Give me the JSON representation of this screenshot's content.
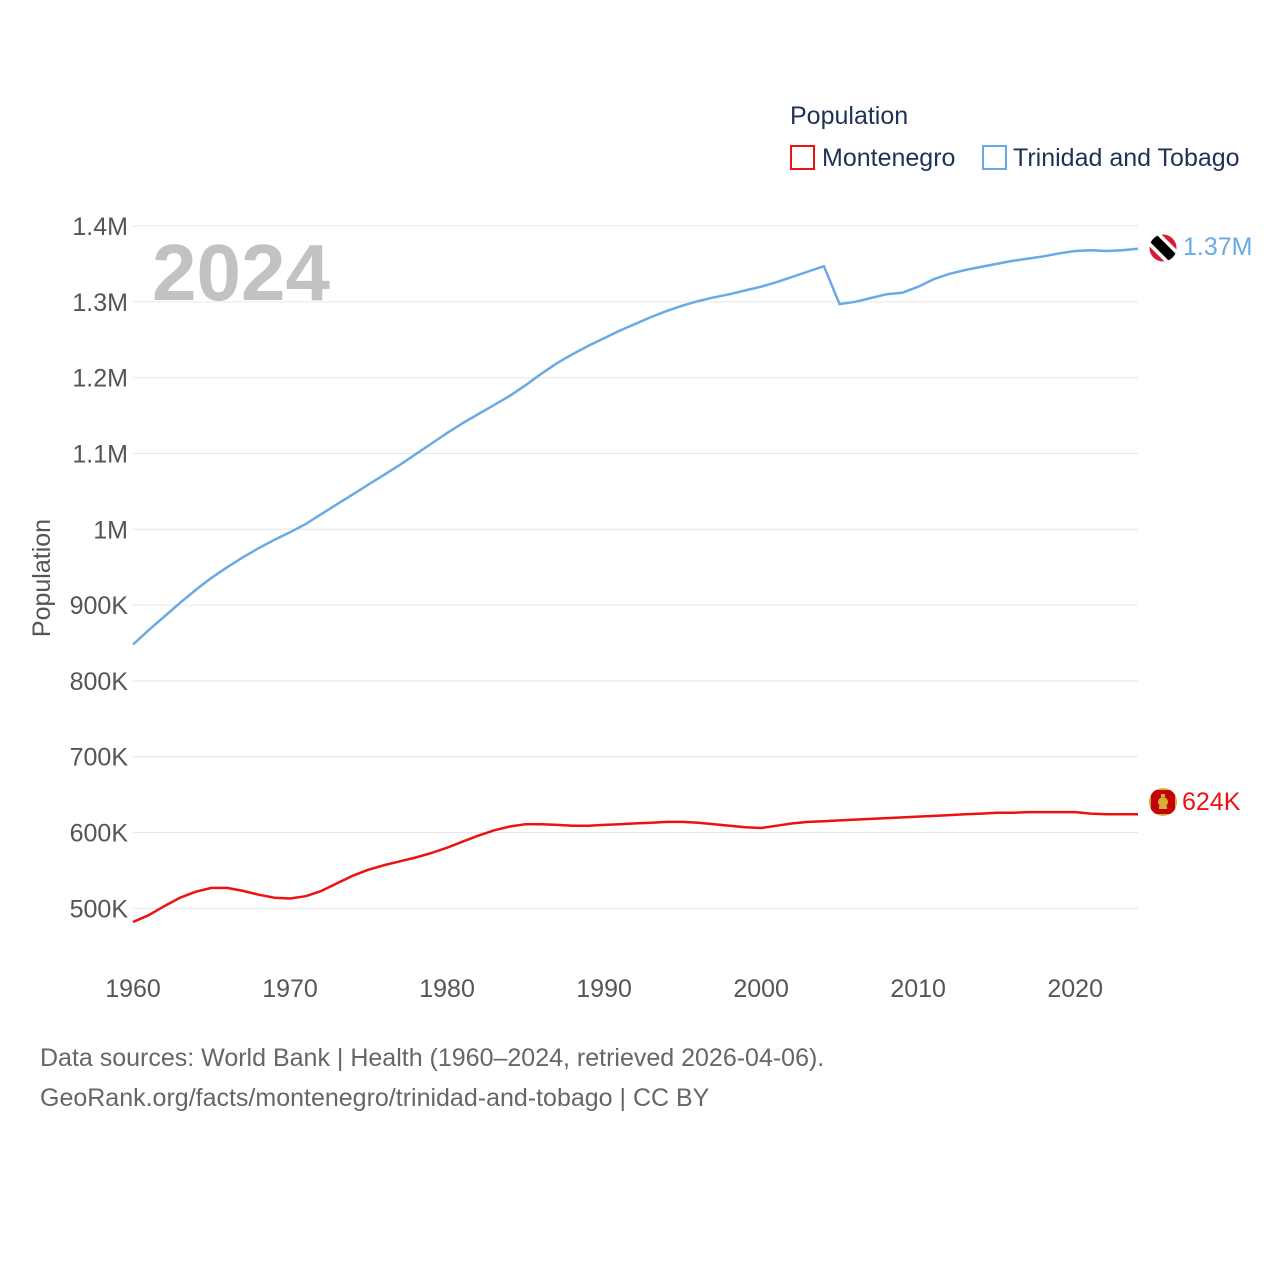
{
  "chart_data": {
    "type": "line",
    "year_label": "2024",
    "ylabel": "Population",
    "xlim": [
      1960,
      2024
    ],
    "ylim": [
      420000,
      1400000
    ],
    "x_ticks": [
      1960,
      1970,
      1980,
      1990,
      2000,
      2010,
      2020
    ],
    "y_ticks": [
      {
        "value": 500000,
        "label": "500K"
      },
      {
        "value": 600000,
        "label": "600K"
      },
      {
        "value": 700000,
        "label": "700K"
      },
      {
        "value": 800000,
        "label": "800K"
      },
      {
        "value": 900000,
        "label": "900K"
      },
      {
        "value": 1000000,
        "label": "1M"
      },
      {
        "value": 1100000,
        "label": "1.1M"
      },
      {
        "value": 1200000,
        "label": "1.2M"
      },
      {
        "value": 1300000,
        "label": "1.3M"
      },
      {
        "value": 1400000,
        "label": "1.4M"
      }
    ],
    "legend": {
      "title": "Population",
      "position": "top-right"
    },
    "series": [
      {
        "name": "Montenegro",
        "color": "#ee1111",
        "end_label": "624K",
        "flag": "montenegro-flag",
        "x": [
          1960,
          1961,
          1962,
          1963,
          1964,
          1965,
          1966,
          1967,
          1968,
          1969,
          1970,
          1971,
          1972,
          1973,
          1974,
          1975,
          1976,
          1977,
          1978,
          1979,
          1980,
          1981,
          1982,
          1983,
          1984,
          1985,
          1986,
          1987,
          1988,
          1989,
          1990,
          1991,
          1992,
          1993,
          1994,
          1995,
          1996,
          1997,
          1998,
          1999,
          2000,
          2001,
          2002,
          2003,
          2004,
          2005,
          2006,
          2007,
          2008,
          2009,
          2010,
          2011,
          2012,
          2013,
          2014,
          2015,
          2016,
          2017,
          2018,
          2019,
          2020,
          2021,
          2022,
          2023,
          2024
        ],
        "values": [
          482000,
          491000,
          503000,
          514000,
          522000,
          527000,
          527000,
          523000,
          518000,
          514000,
          513000,
          516000,
          523000,
          533000,
          543000,
          551000,
          557000,
          562000,
          567000,
          573000,
          580000,
          588000,
          596000,
          603000,
          608000,
          611000,
          611000,
          610000,
          609000,
          609000,
          610000,
          611000,
          612000,
          613000,
          614000,
          614000,
          613000,
          611000,
          609000,
          607000,
          606000,
          609000,
          612000,
          614000,
          615000,
          616000,
          617000,
          618000,
          619000,
          620000,
          621000,
          622000,
          623000,
          624000,
          625000,
          626000,
          626000,
          627000,
          627000,
          627000,
          627000,
          625000,
          624000,
          624000,
          624000
        ]
      },
      {
        "name": "Trinidad and Tobago",
        "color": "#6aaae4",
        "end_label": "1.37M",
        "flag": "trinidad-and-tobago-flag",
        "x": [
          1960,
          1961,
          1962,
          1963,
          1964,
          1965,
          1966,
          1967,
          1968,
          1969,
          1970,
          1971,
          1972,
          1973,
          1974,
          1975,
          1976,
          1977,
          1978,
          1979,
          1980,
          1981,
          1982,
          1983,
          1984,
          1985,
          1986,
          1987,
          1988,
          1989,
          1990,
          1991,
          1992,
          1993,
          1994,
          1995,
          1996,
          1997,
          1998,
          1999,
          2000,
          2001,
          2002,
          2003,
          2004,
          2005,
          2006,
          2007,
          2008,
          2009,
          2010,
          2011,
          2012,
          2013,
          2014,
          2015,
          2016,
          2017,
          2018,
          2019,
          2020,
          2021,
          2022,
          2023,
          2024
        ],
        "values": [
          848000,
          867000,
          885000,
          903000,
          920000,
          936000,
          950000,
          963000,
          975000,
          986000,
          996000,
          1007000,
          1020000,
          1033000,
          1046000,
          1059000,
          1072000,
          1085000,
          1099000,
          1113000,
          1127000,
          1140000,
          1152000,
          1164000,
          1176000,
          1190000,
          1205000,
          1219000,
          1231000,
          1242000,
          1252000,
          1262000,
          1271000,
          1280000,
          1288000,
          1295000,
          1301000,
          1306000,
          1310000,
          1315000,
          1320000,
          1326000,
          1333000,
          1340000,
          1347000,
          1297000,
          1300000,
          1305000,
          1310000,
          1312000,
          1320000,
          1330000,
          1337000,
          1342000,
          1346000,
          1350000,
          1354000,
          1357000,
          1360000,
          1364000,
          1367000,
          1368000,
          1367000,
          1368000,
          1370000
        ]
      }
    ]
  },
  "footer": {
    "line1": "Data sources: World Bank | Health (1960–2024, retrieved 2026-04-06).",
    "line2": "GeoRank.org/facts/montenegro/trinidad-and-tobago | CC BY"
  }
}
